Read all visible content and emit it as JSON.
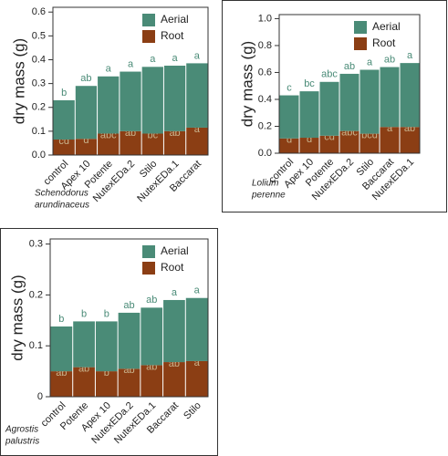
{
  "chart_data": [
    {
      "type": "bar",
      "stacked": true,
      "ylabel": "dry mass (g)",
      "caption": [
        "Schenodorus",
        "arundinaceus"
      ],
      "categories": [
        "control",
        "Apex 10",
        "Potente",
        "NutexEDa.2",
        "Stilo",
        "NutexEDa.1",
        "Baccarat"
      ],
      "series": [
        {
          "name": "Aerial",
          "color": "#4a8b77",
          "values": [
            0.165,
            0.222,
            0.24,
            0.25,
            0.28,
            0.275,
            0.27
          ],
          "letters": [
            "b",
            "ab",
            "a",
            "a",
            "a",
            "a",
            "a"
          ]
        },
        {
          "name": "Root",
          "color": "#8b3e14",
          "values": [
            0.065,
            0.068,
            0.09,
            0.1,
            0.09,
            0.1,
            0.115
          ],
          "letters": [
            "cd",
            "d",
            "abc",
            "ab",
            "bc",
            "ab",
            "a"
          ]
        }
      ],
      "ylim": [
        0,
        0.62
      ],
      "yticks": [
        {
          "value": 0,
          "label": "0.0"
        },
        0.1,
        0.2,
        0.3,
        0.4,
        0.5,
        0.6
      ],
      "legend": "upper right"
    },
    {
      "type": "bar",
      "stacked": true,
      "ylabel": "dry mass (g)",
      "caption": [
        "Lolium",
        "perenne"
      ],
      "categories": [
        "control",
        "Apex 10",
        "Potente",
        "NutexEDa.2",
        "Stilo",
        "Baccarat",
        "NutexEDa.1"
      ],
      "series": [
        {
          "name": "Aerial",
          "color": "#4a8b77",
          "values": [
            0.32,
            0.345,
            0.4,
            0.425,
            0.475,
            0.445,
            0.475
          ],
          "letters": [
            "c",
            "bc",
            "abc",
            "ab",
            "a",
            "ab",
            "a"
          ]
        },
        {
          "name": "Root",
          "color": "#8b3e14",
          "values": [
            0.11,
            0.115,
            0.13,
            0.165,
            0.145,
            0.195,
            0.195
          ],
          "letters": [
            "d",
            "d",
            "cd",
            "abc",
            "bcd",
            "a",
            "ab"
          ]
        }
      ],
      "ylim": [
        0,
        1.03
      ],
      "yticks": [
        {
          "value": 0,
          "label": "0.0"
        },
        0.2,
        0.4,
        0.6,
        0.8,
        {
          "value": 1,
          "label": "1.0"
        }
      ],
      "legend": "upper right"
    },
    {
      "type": "bar",
      "stacked": true,
      "ylabel": "dry mass (g)",
      "caption": [
        "Agrostis",
        "palustris"
      ],
      "categories": [
        "control",
        "Potente",
        "Apex 10",
        "NutexEDa.2",
        "NutexEDa.1",
        "Baccarat",
        "Stilo"
      ],
      "series": [
        {
          "name": "Aerial",
          "color": "#4a8b77",
          "values": [
            0.088,
            0.09,
            0.098,
            0.11,
            0.113,
            0.122,
            0.124
          ],
          "letters": [
            "b",
            "b",
            "b",
            "ab",
            "ab",
            "a",
            "a"
          ]
        },
        {
          "name": "Root",
          "color": "#8b3e14",
          "values": [
            0.05,
            0.058,
            0.05,
            0.055,
            0.062,
            0.068,
            0.07
          ],
          "letters": [
            "ab",
            "ab",
            "b",
            "ab",
            "ab",
            "ab",
            "a"
          ]
        }
      ],
      "ylim": [
        0,
        0.31
      ],
      "yticks": [
        0,
        0.1,
        0.2,
        0.3
      ],
      "legend": "upper right"
    }
  ]
}
